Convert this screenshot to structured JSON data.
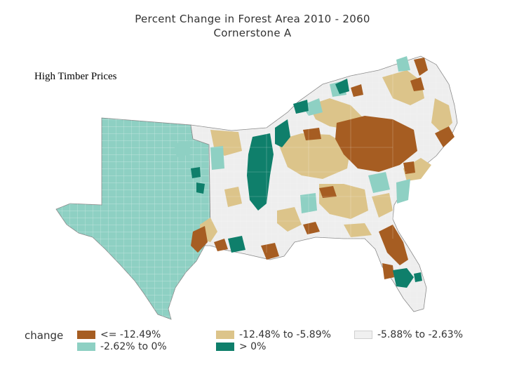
{
  "title": "Percent Change in Forest Area 2010 - 2060",
  "subtitle": "Cornerstone A",
  "scenario_label": "High Timber Prices",
  "legend": {
    "title": "change",
    "items": [
      {
        "label": "<= -12.49%",
        "color": "#a65d22"
      },
      {
        "label": "-12.48% to -5.89%",
        "color": "#dcc48a"
      },
      {
        "label": "-5.88% to -2.63%",
        "color": "#f0f0f0"
      },
      {
        "label": "-2.62% to 0%",
        "color": "#8ed0c3"
      },
      {
        "label": "> 0%",
        "color": "#0f7f6b"
      }
    ]
  },
  "colors": {
    "county_border": "#c8c8c8",
    "outline": "#8a8a8a"
  }
}
